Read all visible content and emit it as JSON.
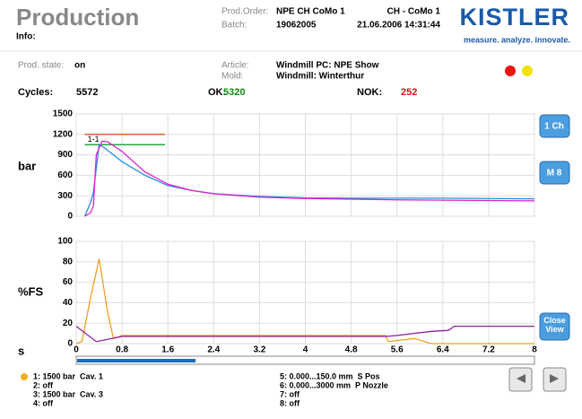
{
  "header": {
    "title": "Production",
    "info": "Info:",
    "order_label": "Prod.Order:",
    "order": "NPE CH CoMo 1",
    "batch_label": "Batch:",
    "batch": "19062005",
    "station": "CH - CoMo 1",
    "datetime": "21.06.2006 14:31:44",
    "brand": "KISTLER",
    "slogan": "measure. analyze. innovate."
  },
  "status": {
    "state_label": "Prod. state:",
    "state": "on",
    "article_label": "Article:",
    "article": "Windmill PC: NPE Show",
    "mold_label": "Mold:",
    "mold": "Windmill: Winterthur"
  },
  "counts": {
    "cycles_label": "Cycles:",
    "cycles": 5572,
    "ok_label": "OK:",
    "ok": 5320,
    "nok_label": "NOK:",
    "nok": 252
  },
  "chart_data": [
    {
      "type": "line",
      "y_label": "bar",
      "xlim": [
        0,
        8
      ],
      "xticks": [
        0,
        0.8,
        1.6,
        2.4,
        3.2,
        4,
        4.8,
        5.6,
        6.4,
        7.2,
        8
      ],
      "ylim": [
        0,
        1500
      ],
      "yticks": [
        0,
        300,
        600,
        900,
        1200,
        1500
      ],
      "grid": true,
      "annotation": "1-1",
      "window": {
        "x": [
          0.15,
          1.55
        ],
        "upper": 1200,
        "lower": 1050,
        "upper_color": "#e8602c",
        "lower_color": "#22aa44"
      },
      "series": [
        {
          "name": "Cav. 1",
          "color": "#1e90e0",
          "x": [
            0.15,
            0.25,
            0.3,
            0.35,
            0.4,
            0.5,
            0.8,
            1.2,
            1.6,
            2.0,
            2.4,
            3.2,
            4.0,
            4.8,
            5.6,
            6.4,
            7.2,
            8.0
          ],
          "values": [
            0,
            200,
            350,
            700,
            1050,
            1000,
            800,
            600,
            450,
            380,
            330,
            290,
            270,
            265,
            265,
            265,
            260,
            255
          ]
        },
        {
          "name": "Cav. 3",
          "color": "#e020d0",
          "x": [
            0.15,
            0.25,
            0.3,
            0.35,
            0.45,
            0.55,
            0.8,
            1.2,
            1.6,
            2.0,
            2.4,
            3.2,
            4.0,
            4.8,
            5.6,
            6.4,
            7.2,
            8.0
          ],
          "values": [
            0,
            50,
            150,
            900,
            1100,
            1090,
            950,
            650,
            470,
            380,
            330,
            280,
            260,
            250,
            240,
            235,
            230,
            225
          ]
        }
      ]
    },
    {
      "type": "line",
      "y_label": "%FS",
      "x_label": "s",
      "xlim": [
        0,
        8
      ],
      "xticks": [
        0,
        0.8,
        1.6,
        2.4,
        3.2,
        4,
        4.8,
        5.6,
        6.4,
        7.2,
        8
      ],
      "ylim": [
        0,
        100
      ],
      "yticks": [
        0,
        20,
        40,
        60,
        80,
        100
      ],
      "grid": true,
      "series": [
        {
          "name": "P Nozzle",
          "color": "#f0a020",
          "x": [
            0,
            0.1,
            0.25,
            0.4,
            0.55,
            0.65,
            0.8,
            5.4,
            5.45,
            5.9,
            6.2,
            8.0
          ],
          "values": [
            0,
            2,
            45,
            83,
            30,
            5,
            8,
            8,
            2,
            5,
            0,
            0
          ]
        },
        {
          "name": "S Pos",
          "color": "#9020a0",
          "x": [
            0,
            0.35,
            0.8,
            5.4,
            5.6,
            6.2,
            6.5,
            6.6,
            8.0
          ],
          "values": [
            17,
            2,
            7,
            7,
            8,
            12,
            13,
            17,
            17
          ]
        }
      ]
    }
  ],
  "legend": [
    {
      "text": "1: 1500 bar  Cav. 1",
      "color": "#1e90e0"
    },
    {
      "text": "2: off",
      "color": "#e02020"
    },
    {
      "text": "3: 1500 bar  Cav. 3",
      "color": "#e020d0"
    },
    {
      "text": "4: off",
      "color": "#22cc22"
    },
    {
      "text": "5: 0.000...150.0 mm  S Pos",
      "color": "#9020a0"
    },
    {
      "text": "6: 0.000...3000 mm  P Nozzle",
      "color": "#f0a020"
    },
    {
      "text": "7: off",
      "color": "#909000"
    },
    {
      "text": "8: off",
      "color": "#20d0e0"
    }
  ],
  "buttons": {
    "channel": "1 Ch",
    "memory": "M 8",
    "close": "Close View"
  }
}
